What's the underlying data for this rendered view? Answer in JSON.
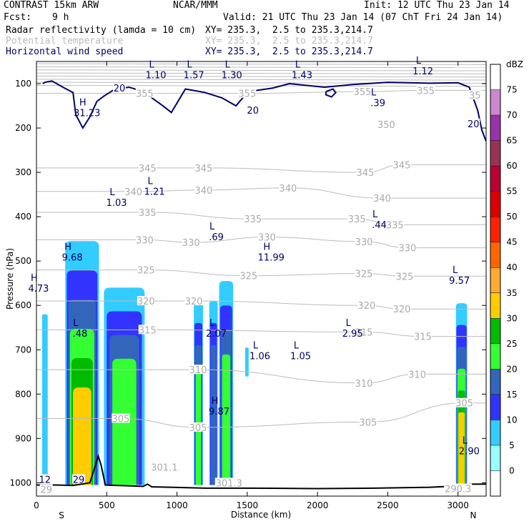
{
  "header": {
    "model": "CONTRAST 15km ARW",
    "center": "NCAR/MMM",
    "init": "Init: 12 UTC Thu 23 Jan 14",
    "fcst_label": "Fcst:",
    "fcst_value": "9 h",
    "valid": "Valid: 21 UTC Thu 23 Jan 14 (07 ChT Fri 24 Jan 14)",
    "field1_name": "Radar reflectivity (lamda = 10 cm)",
    "field1_xy": "XY= 235.3,  2.5 to 235.3,214.7",
    "field2_name": "Potential temperature",
    "field2_xy": "XY= 235.3,  2.5 to 235.3,214.7",
    "field3_name": "Horizontal wind speed",
    "field3_xy": "XY= 235.3,  2.5 to 235.3,214.7"
  },
  "chart_data": {
    "type": "cross-section",
    "xlabel": "Distance (km)",
    "ylabel": "Pressure (hPa)",
    "xlim": [
      0,
      3200
    ],
    "ylim": [
      1030,
      50
    ],
    "x_ticks": [
      0,
      500,
      1000,
      1500,
      2000,
      2500,
      3000
    ],
    "y_ticks": [
      100,
      200,
      300,
      400,
      500,
      600,
      700,
      800,
      900,
      1000
    ],
    "x_end_labels": {
      "left": "S",
      "right": "N"
    },
    "colorbar": {
      "unit": "dBZ",
      "levels": [
        0,
        5,
        10,
        15,
        20,
        25,
        30,
        35,
        40,
        45,
        50,
        55,
        60,
        65,
        70,
        75
      ],
      "colors": [
        "#ffffff",
        "#99ffff",
        "#33ccff",
        "#3333ff",
        "#3366bb",
        "#33ff33",
        "#00bb00",
        "#ffcc00",
        "#ffaa33",
        "#ff6600",
        "#ff2200",
        "#dd0000",
        "#bb0033",
        "#993355",
        "#9933aa",
        "#cc88cc",
        "#ffffff"
      ]
    },
    "reflectivity_cells": [
      {
        "x0": 40,
        "x1": 80,
        "top": 620,
        "bottom": 1000,
        "max_level": 5
      },
      {
        "x0": 205,
        "x1": 445,
        "top": 455,
        "bottom": 1005,
        "max_level": 30
      },
      {
        "x0": 480,
        "x1": 770,
        "top": 560,
        "bottom": 1005,
        "max_level": 20
      },
      {
        "x0": 1120,
        "x1": 1185,
        "top": 590,
        "bottom": 1005,
        "max_level": 20
      },
      {
        "x0": 1230,
        "x1": 1290,
        "top": 590,
        "bottom": 1005,
        "max_level": 15
      },
      {
        "x0": 1300,
        "x1": 1400,
        "top": 545,
        "bottom": 1005,
        "max_level": 20
      },
      {
        "x0": 1485,
        "x1": 1510,
        "top": 695,
        "bottom": 760,
        "max_level": 5
      },
      {
        "x0": 2985,
        "x1": 3065,
        "top": 595,
        "bottom": 1005,
        "max_level": 30
      }
    ],
    "theta_contours": [
      {
        "value": "301.1",
        "x": 910,
        "p": 965
      },
      {
        "value": "301.3",
        "x": 1370,
        "p": 1000
      },
      {
        "value": "305",
        "x": 600,
        "p": 855
      },
      {
        "value": "305",
        "x": 1150,
        "p": 875
      },
      {
        "value": "305",
        "x": 2360,
        "p": 863
      },
      {
        "value": "305",
        "x": 3045,
        "p": 820
      },
      {
        "value": "310",
        "x": 1150,
        "p": 745
      },
      {
        "value": "310",
        "x": 2330,
        "p": 775
      },
      {
        "value": "310",
        "x": 2710,
        "p": 755
      },
      {
        "value": "315",
        "x": 790,
        "p": 655
      },
      {
        "value": "315",
        "x": 2330,
        "p": 660
      },
      {
        "value": "315",
        "x": 2750,
        "p": 670
      },
      {
        "value": "320",
        "x": 780,
        "p": 590
      },
      {
        "value": "320",
        "x": 1120,
        "p": 590
      },
      {
        "value": "320",
        "x": 2350,
        "p": 600
      },
      {
        "value": "320",
        "x": 2600,
        "p": 608
      },
      {
        "value": "325",
        "x": 780,
        "p": 520
      },
      {
        "value": "325",
        "x": 1510,
        "p": 533
      },
      {
        "value": "325",
        "x": 2330,
        "p": 528
      },
      {
        "value": "325",
        "x": 2620,
        "p": 534
      },
      {
        "value": "330",
        "x": 770,
        "p": 452
      },
      {
        "value": "330",
        "x": 1100,
        "p": 458
      },
      {
        "value": "330",
        "x": 1640,
        "p": 446
      },
      {
        "value": "330",
        "x": 2330,
        "p": 456
      },
      {
        "value": "330",
        "x": 2640,
        "p": 470
      },
      {
        "value": "335",
        "x": 790,
        "p": 390
      },
      {
        "value": "335",
        "x": 1540,
        "p": 405
      },
      {
        "value": "335",
        "x": 2280,
        "p": 405
      },
      {
        "value": "335",
        "x": 2550,
        "p": 418
      },
      {
        "value": "340",
        "x": 690,
        "p": 343
      },
      {
        "value": "340",
        "x": 1190,
        "p": 340
      },
      {
        "value": "340",
        "x": 1790,
        "p": 335
      },
      {
        "value": "340",
        "x": 2460,
        "p": 358
      },
      {
        "value": "345",
        "x": 790,
        "p": 290
      },
      {
        "value": "345",
        "x": 1190,
        "p": 290
      },
      {
        "value": "345",
        "x": 2340,
        "p": 300
      },
      {
        "value": "345",
        "x": 2600,
        "p": 283
      },
      {
        "value": "350",
        "x": 2490,
        "p": 192
      },
      {
        "value": "355",
        "x": 770,
        "p": 122
      },
      {
        "value": "355",
        "x": 1500,
        "p": 122
      },
      {
        "value": "355",
        "x": 2320,
        "p": 118
      },
      {
        "value": "355",
        "x": 2770,
        "p": 115
      },
      {
        "value": "35",
        "x": 3120,
        "p": 126
      },
      {
        "value": "29",
        "x": 70,
        "p": 1015
      },
      {
        "value": "290.3",
        "x": 3000,
        "p": 1013
      }
    ],
    "wind_contours": [
      {
        "value": "20",
        "x": 590,
        "p": 110
      },
      {
        "value": "20",
        "x": 1540,
        "p": 160
      },
      {
        "value": "20",
        "x": 3110,
        "p": 190
      },
      {
        "value": "12",
        "x": 60,
        "p": 992
      },
      {
        "value": "29",
        "x": 300,
        "p": 992
      }
    ],
    "extrema": [
      {
        "kind": "L",
        "value": "1.10",
        "x": 850,
        "p": 67
      },
      {
        "kind": "L",
        "value": "1.57",
        "x": 1120,
        "p": 67
      },
      {
        "kind": "L",
        "value": "1.30",
        "x": 1390,
        "p": 67
      },
      {
        "kind": "L",
        "value": "1.43",
        "x": 1890,
        "p": 67
      },
      {
        "kind": "L",
        "value": "1.12",
        "x": 2750,
        "p": 58
      },
      {
        "kind": "H",
        "value": "31.23",
        "x": 360,
        "p": 152
      },
      {
        "kind": "L",
        "value": ".39",
        "x": 2430,
        "p": 130
      },
      {
        "kind": "L",
        "value": "1.21",
        "x": 840,
        "p": 330
      },
      {
        "kind": "L",
        "value": "1.03",
        "x": 570,
        "p": 355
      },
      {
        "kind": "L",
        "value": ".44",
        "x": 2440,
        "p": 405
      },
      {
        "kind": "L",
        "value": ".69",
        "x": 1280,
        "p": 432
      },
      {
        "kind": "H",
        "value": "11.99",
        "x": 1670,
        "p": 478
      },
      {
        "kind": "H",
        "value": "9.68",
        "x": 255,
        "p": 478
      },
      {
        "kind": "H",
        "value": "4.73",
        "x": 15,
        "p": 548
      },
      {
        "kind": "L",
        "value": "9.57",
        "x": 3010,
        "p": 530
      },
      {
        "kind": "L",
        "value": ".48",
        "x": 310,
        "p": 650
      },
      {
        "kind": "L",
        "value": "2.07",
        "x": 1280,
        "p": 650
      },
      {
        "kind": "L",
        "value": "2.95",
        "x": 2250,
        "p": 650
      },
      {
        "kind": "L",
        "value": "1.06",
        "x": 1590,
        "p": 700
      },
      {
        "kind": "L",
        "value": "1.05",
        "x": 1880,
        "p": 700
      },
      {
        "kind": "H",
        "value": "9.87",
        "x": 1300,
        "p": 825
      },
      {
        "kind": "L",
        "value": "2.90",
        "x": 3080,
        "p": 915
      }
    ]
  }
}
